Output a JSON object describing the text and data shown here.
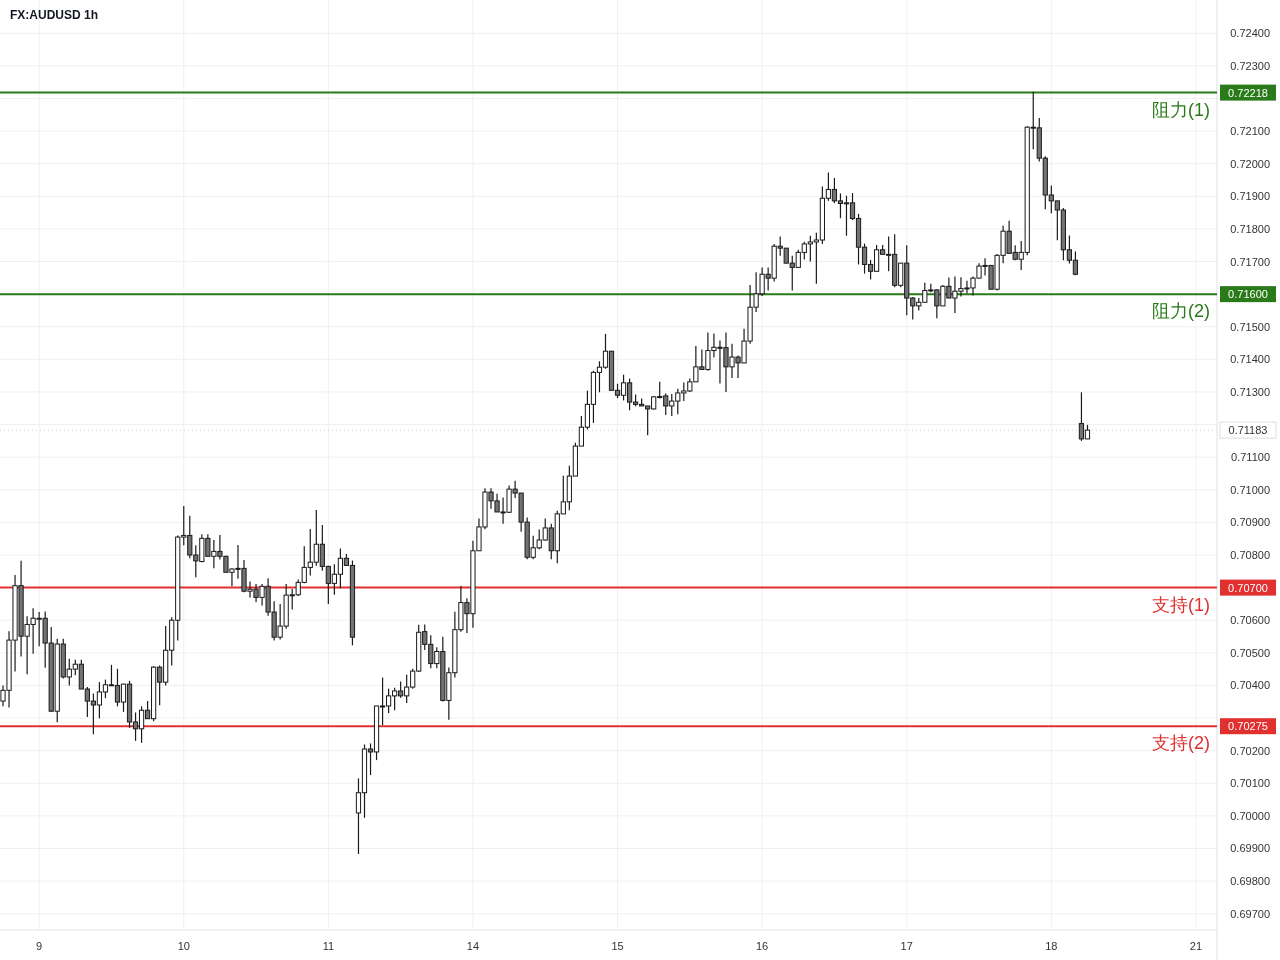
{
  "chart_data": {
    "type": "candlestick",
    "title": "FX:AUDUSD 1h",
    "grid": true,
    "annotations": [
      "0.72218",
      "0.71600",
      "0.70700",
      "0.70275",
      "0.71183"
    ],
    "categories": [
      null,
      null,
      null,
      null,
      null,
      null,
      "9",
      null,
      null,
      null,
      null,
      null,
      null,
      null,
      null,
      null,
      null,
      null,
      null,
      null,
      null,
      null,
      null,
      null,
      null,
      null,
      null,
      null,
      null,
      null,
      "10",
      null,
      null,
      null,
      null,
      null,
      null,
      null,
      null,
      null,
      null,
      null,
      null,
      null,
      null,
      null,
      null,
      null,
      null,
      null,
      null,
      null,
      null,
      null,
      "11",
      null,
      null,
      null,
      null,
      null,
      null,
      null,
      null,
      null,
      null,
      null,
      null,
      null,
      null,
      null,
      null,
      null,
      null,
      null,
      null,
      null,
      null,
      null,
      "14",
      null,
      null,
      null,
      null,
      null,
      null,
      null,
      null,
      null,
      null,
      null,
      null,
      null,
      null,
      null,
      null,
      null,
      null,
      null,
      null,
      null,
      null,
      null,
      "15",
      null,
      null,
      null,
      null,
      null,
      null,
      null,
      null,
      null,
      null,
      null,
      null,
      null,
      null,
      null,
      null,
      null,
      null,
      null,
      null,
      null,
      null,
      null,
      "16",
      null,
      null,
      null,
      null,
      null,
      null,
      null,
      null,
      null,
      null,
      null,
      null,
      null,
      null,
      null,
      null,
      null,
      null,
      null,
      null,
      null,
      null,
      null,
      "17",
      null,
      null,
      null,
      null,
      null,
      null,
      null,
      null,
      null,
      null,
      null,
      null,
      null,
      null,
      null,
      null,
      null,
      null,
      null,
      null,
      null,
      null,
      null,
      "18",
      null,
      null,
      null,
      null,
      null,
      null,
      null,
      null,
      null,
      null,
      null,
      null,
      null,
      null,
      null,
      null,
      null,
      null,
      null,
      null,
      null,
      null,
      null,
      "21",
      null,
      null,
      null
    ],
    "ohlc": [
      [
        0.70352,
        0.704,
        0.70336,
        0.70385
      ],
      [
        0.70385,
        0.70566,
        0.70332,
        0.70539
      ],
      [
        0.70539,
        0.70739,
        0.70443,
        0.70706
      ],
      [
        0.70706,
        0.70782,
        0.70489,
        0.70551
      ],
      [
        0.70551,
        0.70612,
        0.70434,
        0.70587
      ],
      [
        0.70587,
        0.70637,
        0.70497,
        0.70606
      ],
      [
        0.70606,
        0.70625,
        0.7052,
        0.70606
      ],
      [
        0.70606,
        0.70627,
        0.70454,
        0.7053
      ],
      [
        0.7053,
        0.70579,
        0.70319,
        0.70321
      ],
      [
        0.70321,
        0.70543,
        0.70287,
        0.70527
      ],
      [
        0.70527,
        0.70543,
        0.70421,
        0.70426
      ],
      [
        0.70426,
        0.70482,
        0.704,
        0.7045
      ],
      [
        0.7045,
        0.70479,
        0.70431,
        0.70465
      ],
      [
        0.70465,
        0.70479,
        0.70389,
        0.70389
      ],
      [
        0.70389,
        0.70395,
        0.70303,
        0.70352
      ],
      [
        0.70352,
        0.70375,
        0.7025,
        0.7034
      ],
      [
        0.7034,
        0.7041,
        0.70299,
        0.7038
      ],
      [
        0.7038,
        0.70418,
        0.70361,
        0.70402
      ],
      [
        0.70402,
        0.70463,
        0.70398,
        0.704
      ],
      [
        0.704,
        0.70451,
        0.70336,
        0.70349
      ],
      [
        0.70349,
        0.70404,
        0.70319,
        0.70404
      ],
      [
        0.70404,
        0.70414,
        0.7027,
        0.70288
      ],
      [
        0.70288,
        0.70317,
        0.7023,
        0.70267
      ],
      [
        0.70267,
        0.70336,
        0.70224,
        0.70324
      ],
      [
        0.70324,
        0.70352,
        0.70298,
        0.70298
      ],
      [
        0.70298,
        0.70459,
        0.7029,
        0.70456
      ],
      [
        0.70456,
        0.70461,
        0.70339,
        0.7041
      ],
      [
        0.7041,
        0.70582,
        0.704,
        0.70508
      ],
      [
        0.70508,
        0.70609,
        0.70461,
        0.706
      ],
      [
        0.706,
        0.7086,
        0.70538,
        0.70855
      ],
      [
        0.70855,
        0.7095,
        0.7083,
        0.7086
      ],
      [
        0.7086,
        0.7092,
        0.7079,
        0.708
      ],
      [
        0.708,
        0.7083,
        0.70732,
        0.70782
      ],
      [
        0.7078,
        0.70864,
        0.70778,
        0.70851
      ],
      [
        0.70851,
        0.70864,
        0.70796,
        0.70796
      ],
      [
        0.70796,
        0.70846,
        0.70759,
        0.70811
      ],
      [
        0.70811,
        0.70861,
        0.70786,
        0.70796
      ],
      [
        0.70796,
        0.70798,
        0.70747,
        0.70747
      ],
      [
        0.70747,
        0.70759,
        0.70704,
        0.70757
      ],
      [
        0.70757,
        0.70831,
        0.70727,
        0.70759
      ],
      [
        0.70759,
        0.70785,
        0.70686,
        0.70689
      ],
      [
        0.70689,
        0.70719,
        0.7067,
        0.70695
      ],
      [
        0.70695,
        0.70711,
        0.70655,
        0.7067
      ],
      [
        0.7067,
        0.70711,
        0.70645,
        0.70704
      ],
      [
        0.70704,
        0.70729,
        0.70614,
        0.70625
      ],
      [
        0.70625,
        0.70658,
        0.70538,
        0.70548
      ],
      [
        0.70548,
        0.7065,
        0.70541,
        0.70582
      ],
      [
        0.70582,
        0.70711,
        0.70574,
        0.70677
      ],
      [
        0.70677,
        0.70696,
        0.70633,
        0.70678
      ],
      [
        0.70678,
        0.70725,
        0.70674,
        0.70716
      ],
      [
        0.70716,
        0.70827,
        0.70713,
        0.70762
      ],
      [
        0.70762,
        0.7088,
        0.70737,
        0.70778
      ],
      [
        0.70778,
        0.70938,
        0.70767,
        0.70833
      ],
      [
        0.70833,
        0.70892,
        0.70752,
        0.70765
      ],
      [
        0.70765,
        0.70767,
        0.7065,
        0.70713
      ],
      [
        0.70713,
        0.70772,
        0.70678,
        0.70741
      ],
      [
        0.70741,
        0.7082,
        0.70698,
        0.7079
      ],
      [
        0.7079,
        0.70803,
        0.70768,
        0.70768
      ],
      [
        0.70768,
        0.70783,
        0.70523,
        0.70548
      ],
      [
        0.70009,
        0.70115,
        0.69883,
        0.70071
      ],
      [
        0.70071,
        0.70219,
        0.69994,
        0.70205
      ],
      [
        0.70205,
        0.70222,
        0.70125,
        0.70196
      ],
      [
        0.70196,
        0.70337,
        0.70171,
        0.70337
      ],
      [
        0.70337,
        0.70424,
        0.70278,
        0.70337
      ],
      [
        0.70337,
        0.7039,
        0.70315,
        0.70368
      ],
      [
        0.70368,
        0.70393,
        0.70324,
        0.70383
      ],
      [
        0.70383,
        0.70412,
        0.70362,
        0.70368
      ],
      [
        0.70368,
        0.70433,
        0.70346,
        0.70395
      ],
      [
        0.70395,
        0.70451,
        0.7039,
        0.70444
      ],
      [
        0.70444,
        0.70586,
        0.70441,
        0.70563
      ],
      [
        0.70565,
        0.70587,
        0.70509,
        0.70526
      ],
      [
        0.70526,
        0.70554,
        0.70453,
        0.70467
      ],
      [
        0.70467,
        0.70517,
        0.70453,
        0.70504
      ],
      [
        0.70504,
        0.70549,
        0.70351,
        0.70354
      ],
      [
        0.70354,
        0.70455,
        0.70295,
        0.70439
      ],
      [
        0.70439,
        0.70626,
        0.70424,
        0.70571
      ],
      [
        0.70571,
        0.70705,
        0.70565,
        0.70654
      ],
      [
        0.70654,
        0.70667,
        0.70561,
        0.7062
      ],
      [
        0.7062,
        0.70844,
        0.70577,
        0.70813
      ],
      [
        0.70813,
        0.70912,
        0.70813,
        0.70886
      ],
      [
        0.70886,
        0.71005,
        0.70879,
        0.70993
      ],
      [
        0.70993,
        0.71005,
        0.70942,
        0.70966
      ],
      [
        0.70966,
        0.70988,
        0.70932,
        0.70932
      ],
      [
        0.70932,
        0.70976,
        0.70896,
        0.70931
      ],
      [
        0.70931,
        0.71013,
        0.70929,
        0.71002
      ],
      [
        0.71002,
        0.71028,
        0.70975,
        0.7099
      ],
      [
        0.7099,
        0.7099,
        0.70871,
        0.70901
      ],
      [
        0.70901,
        0.70915,
        0.70787,
        0.70793
      ],
      [
        0.70793,
        0.70859,
        0.70787,
        0.70822
      ],
      [
        0.70822,
        0.70878,
        0.70818,
        0.70846
      ],
      [
        0.70846,
        0.70912,
        0.70844,
        0.70883
      ],
      [
        0.70883,
        0.70896,
        0.70787,
        0.70813
      ],
      [
        0.70813,
        0.70936,
        0.70775,
        0.70926
      ],
      [
        0.70926,
        0.71043,
        0.70926,
        0.70963
      ],
      [
        0.70963,
        0.71074,
        0.70937,
        0.71042
      ],
      [
        0.71042,
        0.71144,
        0.71042,
        0.71134
      ],
      [
        0.71134,
        0.71226,
        0.71134,
        0.71192
      ],
      [
        0.71192,
        0.71304,
        0.71185,
        0.71262
      ],
      [
        0.71262,
        0.71365,
        0.71205,
        0.7136
      ],
      [
        0.7136,
        0.71394,
        0.71299,
        0.71376
      ],
      [
        0.71376,
        0.71478,
        0.71371,
        0.71425
      ],
      [
        0.71425,
        0.71425,
        0.71305,
        0.71305
      ],
      [
        0.71305,
        0.71325,
        0.71281,
        0.7129
      ],
      [
        0.7129,
        0.71353,
        0.71274,
        0.71328
      ],
      [
        0.71328,
        0.71341,
        0.71244,
        0.71269
      ],
      [
        0.71269,
        0.71292,
        0.71256,
        0.71262
      ],
      [
        0.71262,
        0.7128,
        0.71257,
        0.71257
      ],
      [
        0.71257,
        0.71257,
        0.71167,
        0.71248
      ],
      [
        0.71248,
        0.71287,
        0.71246,
        0.71285
      ],
      [
        0.71285,
        0.71331,
        0.7128,
        0.71286
      ],
      [
        0.71288,
        0.71295,
        0.71229,
        0.71257
      ],
      [
        0.71257,
        0.71294,
        0.71226,
        0.71272
      ],
      [
        0.71272,
        0.7131,
        0.71232,
        0.71297
      ],
      [
        0.71297,
        0.71329,
        0.71272,
        0.71303
      ],
      [
        0.71303,
        0.71341,
        0.713,
        0.71331
      ],
      [
        0.71331,
        0.71441,
        0.71331,
        0.71377
      ],
      [
        0.71377,
        0.7143,
        0.71369,
        0.71369
      ],
      [
        0.71369,
        0.71482,
        0.71365,
        0.71427
      ],
      [
        0.71427,
        0.71479,
        0.71406,
        0.71437
      ],
      [
        0.71437,
        0.71458,
        0.71326,
        0.71436
      ],
      [
        0.71436,
        0.71482,
        0.713,
        0.71377
      ],
      [
        0.71377,
        0.71448,
        0.71343,
        0.71407
      ],
      [
        0.71407,
        0.71412,
        0.71343,
        0.71389
      ],
      [
        0.71389,
        0.71494,
        0.71389,
        0.71456
      ],
      [
        0.71456,
        0.71628,
        0.71448,
        0.7156
      ],
      [
        0.7156,
        0.71667,
        0.71545,
        0.71601
      ],
      [
        0.71601,
        0.71682,
        0.71594,
        0.71661
      ],
      [
        0.71661,
        0.71682,
        0.71611,
        0.71649
      ],
      [
        0.71649,
        0.71754,
        0.71639,
        0.71747
      ],
      [
        0.71747,
        0.71777,
        0.71718,
        0.71741
      ],
      [
        0.71741,
        0.71741,
        0.71695,
        0.71695
      ],
      [
        0.71695,
        0.71718,
        0.71611,
        0.71682
      ],
      [
        0.71682,
        0.71736,
        0.71682,
        0.71728
      ],
      [
        0.71728,
        0.71761,
        0.71706,
        0.71754
      ],
      [
        0.71754,
        0.71779,
        0.717,
        0.7176
      ],
      [
        0.7176,
        0.71788,
        0.71632,
        0.71766
      ],
      [
        0.71766,
        0.7193,
        0.71754,
        0.71894
      ],
      [
        0.71894,
        0.71973,
        0.71886,
        0.71921
      ],
      [
        0.71921,
        0.71956,
        0.71879,
        0.71886
      ],
      [
        0.71886,
        0.71909,
        0.71833,
        0.71878
      ],
      [
        0.71878,
        0.71902,
        0.71779,
        0.7188
      ],
      [
        0.7188,
        0.7191,
        0.71827,
        0.71832
      ],
      [
        0.71832,
        0.71846,
        0.71691,
        0.71744
      ],
      [
        0.71744,
        0.71755,
        0.71663,
        0.71691
      ],
      [
        0.71691,
        0.71705,
        0.71645,
        0.7167
      ],
      [
        0.7167,
        0.71751,
        0.7167,
        0.71736
      ],
      [
        0.71736,
        0.71751,
        0.71722,
        0.71722
      ],
      [
        0.71722,
        0.71777,
        0.7167,
        0.71722
      ],
      [
        0.71722,
        0.71784,
        0.71621,
        0.71627
      ],
      [
        0.71627,
        0.71695,
        0.71621,
        0.71695
      ],
      [
        0.71695,
        0.7175,
        0.71535,
        0.71588
      ],
      [
        0.71588,
        0.71591,
        0.71522,
        0.71564
      ],
      [
        0.71564,
        0.71588,
        0.7155,
        0.71575
      ],
      [
        0.71575,
        0.71635,
        0.71575,
        0.71611
      ],
      [
        0.71611,
        0.71632,
        0.71606,
        0.71613
      ],
      [
        0.71613,
        0.71614,
        0.71526,
        0.71564
      ],
      [
        0.71564,
        0.71628,
        0.71564,
        0.71624
      ],
      [
        0.71624,
        0.71651,
        0.71588,
        0.71588
      ],
      [
        0.71588,
        0.71654,
        0.71542,
        0.71609
      ],
      [
        0.71609,
        0.71652,
        0.71593,
        0.71617
      ],
      [
        0.71617,
        0.71641,
        0.71603,
        0.71619
      ],
      [
        0.71619,
        0.71654,
        0.71596,
        0.71649
      ],
      [
        0.71649,
        0.71695,
        0.71649,
        0.71686
      ],
      [
        0.71686,
        0.7171,
        0.71657,
        0.71688
      ],
      [
        0.71688,
        0.71688,
        0.71615,
        0.71615
      ],
      [
        0.71615,
        0.71723,
        0.71611,
        0.71719
      ],
      [
        0.71719,
        0.7181,
        0.71695,
        0.71793
      ],
      [
        0.71793,
        0.71825,
        0.71725,
        0.71725
      ],
      [
        0.71728,
        0.7175,
        0.71704,
        0.71707
      ],
      [
        0.71707,
        0.71763,
        0.71674,
        0.71728
      ],
      [
        0.71728,
        0.72115,
        0.71719,
        0.72112
      ],
      [
        0.72112,
        0.72221,
        0.72044,
        0.7211
      ],
      [
        0.7211,
        0.7214,
        0.72007,
        0.72017
      ],
      [
        0.72017,
        0.72023,
        0.7186,
        0.71904
      ],
      [
        0.71904,
        0.71933,
        0.71848,
        0.71886
      ],
      [
        0.71886,
        0.71886,
        0.71765,
        0.71858
      ],
      [
        0.71858,
        0.71864,
        0.71704,
        0.71736
      ],
      [
        0.71736,
        0.7178,
        0.71694,
        0.71704
      ],
      [
        0.71704,
        0.71731,
        0.71658,
        0.71661
      ],
      [
        0.71203,
        0.71299,
        0.7115,
        0.71156
      ],
      [
        0.71156,
        0.71199,
        0.71156,
        0.71183
      ],
      null,
      null,
      null,
      null,
      null,
      null,
      null,
      null,
      null,
      null,
      null,
      null,
      null,
      null,
      null,
      null,
      null,
      null,
      null,
      null,
      null
    ],
    "ylim": [
      0.6965,
      0.7241
    ],
    "yticks": [
      {
        "value": 0.697,
        "label": "0.69700"
      },
      {
        "value": 0.698,
        "label": "0.69800"
      },
      {
        "value": 0.699,
        "label": "0.69900"
      },
      {
        "value": 0.7,
        "label": "0.70000"
      },
      {
        "value": 0.701,
        "label": "0.70100"
      },
      {
        "value": 0.702,
        "label": "0.70200"
      },
      {
        "value": 0.703,
        "label": null
      },
      {
        "value": 0.704,
        "label": "0.70400"
      },
      {
        "value": 0.705,
        "label": "0.70500"
      },
      {
        "value": 0.706,
        "label": "0.70600"
      },
      {
        "value": 0.707,
        "label": null
      },
      {
        "value": 0.708,
        "label": "0.70800"
      },
      {
        "value": 0.709,
        "label": "0.70900"
      },
      {
        "value": 0.71,
        "label": "0.71000"
      },
      {
        "value": 0.711,
        "label": "0.71100"
      },
      {
        "value": 0.712,
        "label": null
      },
      {
        "value": 0.713,
        "label": "0.71300"
      },
      {
        "value": 0.714,
        "label": "0.71400"
      },
      {
        "value": 0.715,
        "label": "0.71500"
      },
      {
        "value": 0.716,
        "label": null
      },
      {
        "value": 0.717,
        "label": "0.71700"
      },
      {
        "value": 0.718,
        "label": "0.71800"
      },
      {
        "value": 0.719,
        "label": "0.71900"
      },
      {
        "value": 0.72,
        "label": "0.72000"
      },
      {
        "value": 0.721,
        "label": "0.72100"
      },
      {
        "value": 0.722,
        "label": null
      },
      {
        "value": 0.723,
        "label": "0.72300"
      },
      {
        "value": 0.724,
        "label": "0.72400"
      }
    ],
    "ref_lines": [
      {
        "axis": "y",
        "value": 0.72218,
        "label": "阻力(1)",
        "color": "#2a7a1a",
        "line_style": "solid"
      },
      {
        "axis": "y",
        "value": 0.716,
        "label": "阻力(2)",
        "color": "#2a7a1a",
        "line_style": "solid"
      },
      {
        "axis": "y",
        "value": 0.707,
        "label": "支持(1)",
        "color": "#e03030",
        "line_style": "solid"
      },
      {
        "axis": "y",
        "value": 0.70275,
        "label": "支持(2)",
        "color": "#e03030",
        "line_style": "solid"
      },
      {
        "axis": "y",
        "value": 0.71183,
        "label": null,
        "color": "#d0d0d0",
        "line_style": "dotted"
      }
    ]
  }
}
